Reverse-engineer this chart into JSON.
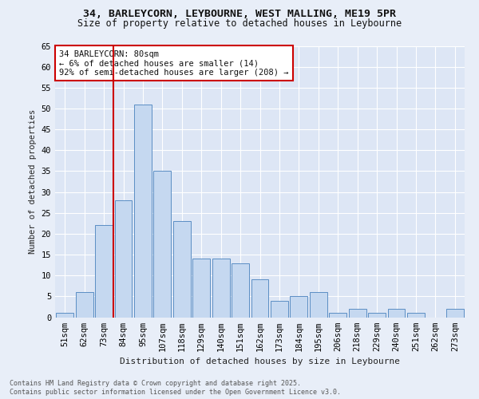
{
  "title_line1": "34, BARLEYCORN, LEYBOURNE, WEST MALLING, ME19 5PR",
  "title_line2": "Size of property relative to detached houses in Leybourne",
  "xlabel": "Distribution of detached houses by size in Leybourne",
  "ylabel": "Number of detached properties",
  "categories": [
    "51sqm",
    "62sqm",
    "73sqm",
    "84sqm",
    "95sqm",
    "107sqm",
    "118sqm",
    "129sqm",
    "140sqm",
    "151sqm",
    "162sqm",
    "173sqm",
    "184sqm",
    "195sqm",
    "206sqm",
    "218sqm",
    "229sqm",
    "240sqm",
    "251sqm",
    "262sqm",
    "273sqm"
  ],
  "values": [
    1,
    6,
    22,
    28,
    51,
    35,
    23,
    14,
    14,
    13,
    9,
    4,
    5,
    6,
    1,
    2,
    1,
    2,
    1,
    0,
    2
  ],
  "bar_color": "#c5d8f0",
  "bar_edge_color": "#5b8ec4",
  "vline_index": 2,
  "vline_color": "#cc0000",
  "annotation_text": "34 BARLEYCORN: 80sqm\n← 6% of detached houses are smaller (14)\n92% of semi-detached houses are larger (208) →",
  "annotation_box_facecolor": "#ffffff",
  "annotation_box_edgecolor": "#cc0000",
  "footer_line1": "Contains HM Land Registry data © Crown copyright and database right 2025.",
  "footer_line2": "Contains public sector information licensed under the Open Government Licence v3.0.",
  "bg_color": "#e8eef8",
  "plot_bg_color": "#dde6f5",
  "ylim": [
    0,
    65
  ],
  "yticks": [
    0,
    5,
    10,
    15,
    20,
    25,
    30,
    35,
    40,
    45,
    50,
    55,
    60,
    65
  ],
  "title_fontsize": 9.5,
  "subtitle_fontsize": 8.5,
  "tick_fontsize": 7.5,
  "ylabel_fontsize": 7.5,
  "xlabel_fontsize": 8.0,
  "annot_fontsize": 7.5,
  "footer_fontsize": 6.0
}
